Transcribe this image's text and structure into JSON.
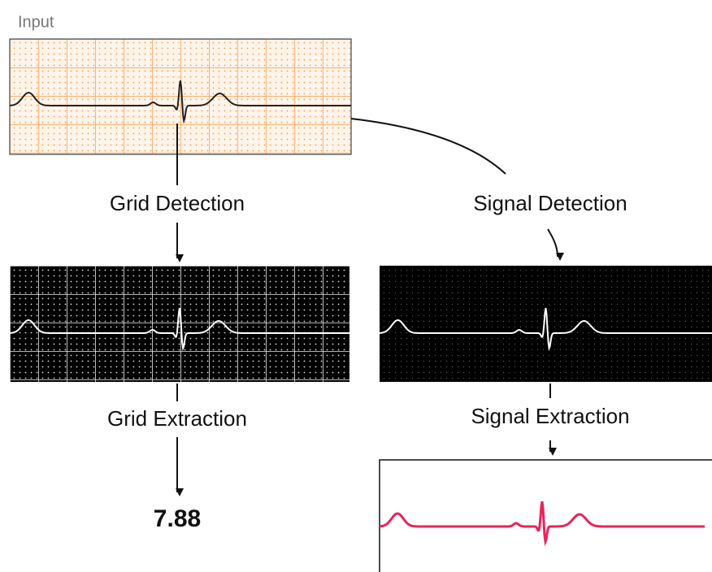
{
  "input": {
    "label": "Input"
  },
  "grid_branch": {
    "detection": "Grid Detection",
    "extraction": "Grid Extraction",
    "result": "7.88"
  },
  "signal_branch": {
    "detection": "Signal Detection",
    "extraction": "Signal Extraction"
  }
}
